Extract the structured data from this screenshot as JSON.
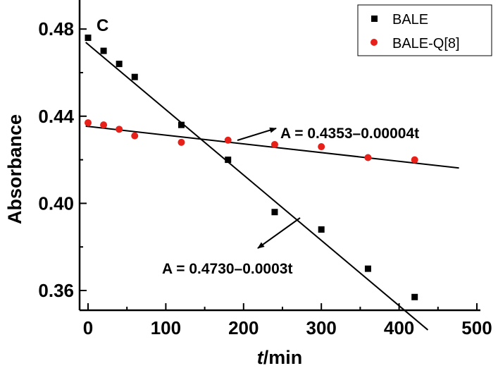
{
  "chart_data": {
    "type": "scatter",
    "panel_label": "C",
    "xlabel_italic": "t",
    "xlabel_rest": "/min",
    "ylabel": "Absorbance",
    "xlim": [
      -10,
      500
    ],
    "ylim": [
      0.349,
      0.4845
    ],
    "x_ticks": [
      0,
      100,
      200,
      300,
      400,
      500
    ],
    "x_tick_labels": [
      "0",
      "100",
      "200",
      "300",
      "400",
      "500"
    ],
    "y_ticks": [
      0.36,
      0.4,
      0.44,
      0.48
    ],
    "y_tick_labels": [
      "0.36",
      "0.40",
      "0.44",
      "0.48"
    ],
    "grid": false,
    "legend_position": "top-right",
    "series": [
      {
        "name": "BALE",
        "marker": "square",
        "color": "#000000",
        "x": [
          0,
          20,
          40,
          60,
          120,
          180,
          240,
          300,
          360,
          420
        ],
        "y": [
          0.476,
          0.47,
          0.464,
          0.458,
          0.436,
          0.42,
          0.396,
          0.388,
          0.37,
          0.357
        ],
        "fit": {
          "intercept": 0.473,
          "slope": -0.0003,
          "x_range": [
            -3,
            437
          ]
        }
      },
      {
        "name": "BALE-Q[8]",
        "marker": "circle",
        "color": "#e8201a",
        "x": [
          0,
          20,
          40,
          60,
          120,
          180,
          240,
          300,
          360,
          420
        ],
        "y": [
          0.437,
          0.436,
          0.434,
          0.431,
          0.428,
          0.429,
          0.427,
          0.426,
          0.421,
          0.42
        ],
        "fit": {
          "intercept": 0.4353,
          "slope": -4e-05,
          "x_range": [
            -3,
            477
          ]
        }
      }
    ],
    "annotations": [
      {
        "text": "A = 0.4353–0.00004t",
        "series": "BALE-Q[8]"
      },
      {
        "text": "A = 0.4730–0.0003t",
        "series": "BALE"
      }
    ]
  }
}
